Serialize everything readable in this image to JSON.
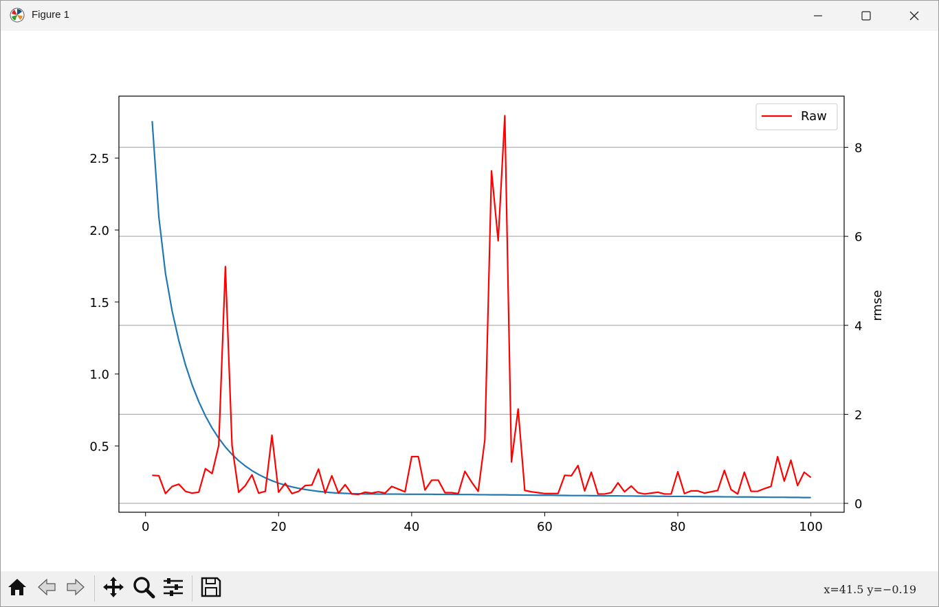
{
  "window": {
    "title": "Figure 1",
    "icons": {
      "app": "matplotlib-icon",
      "minimize": "minimize-icon",
      "maximize": "maximize-icon",
      "close": "close-icon"
    }
  },
  "toolbar": {
    "buttons": [
      {
        "icon": "home-icon"
      },
      {
        "icon": "back-arrow-icon"
      },
      {
        "icon": "forward-arrow-icon"
      },
      {
        "icon": "pan-move-icon"
      },
      {
        "icon": "zoom-magnifier-icon"
      },
      {
        "icon": "configure-subplots-icon"
      },
      {
        "icon": "save-floppy-icon"
      }
    ],
    "coords": "x=41.5 y=−0.19"
  },
  "chart_data": {
    "type": "line",
    "title": "",
    "xlabel": "",
    "ylabel_left": "",
    "ylabel_right": "rmse",
    "xlim": [
      -4,
      105
    ],
    "ylim_left": [
      0.04,
      2.93
    ],
    "ylim_right": [
      -0.2,
      9.15
    ],
    "xticks": [
      0,
      20,
      40,
      60,
      80,
      100
    ],
    "yticks_left": [
      0.5,
      1.0,
      1.5,
      2.0,
      2.5
    ],
    "yticks_right": [
      0,
      2,
      4,
      6,
      8
    ],
    "xtick_labels": [
      "0",
      "20",
      "40",
      "60",
      "80",
      "100"
    ],
    "ytick_labels_left": [
      "0.5",
      "1.0",
      "1.5",
      "2.0",
      "2.5"
    ],
    "ytick_labels_right": [
      "0",
      "2",
      "4",
      "6",
      "8"
    ],
    "grid": "horizontal, right axis",
    "legend": {
      "placement": "top-right",
      "entries": [
        "Raw"
      ]
    },
    "colors": {
      "smooth": "#1f77b4",
      "raw": "#ff0000"
    },
    "series": [
      {
        "axis": "left",
        "x_start": 1,
        "x_end": 100,
        "values": [
          2.757,
          2.091,
          1.698,
          1.437,
          1.232,
          1.064,
          0.925,
          0.808,
          0.709,
          0.625,
          0.554,
          0.493,
          0.442,
          0.398,
          0.361,
          0.329,
          0.302,
          0.279,
          0.259,
          0.242,
          0.228,
          0.216,
          0.206,
          0.198,
          0.191,
          0.185,
          0.18,
          0.176,
          0.173,
          0.171,
          0.169,
          0.168,
          0.167,
          0.167,
          0.166,
          0.166,
          0.166,
          0.166,
          0.165,
          0.165,
          0.165,
          0.165,
          0.165,
          0.164,
          0.164,
          0.164,
          0.163,
          0.163,
          0.163,
          0.162,
          0.162,
          0.161,
          0.161,
          0.161,
          0.16,
          0.16,
          0.159,
          0.159,
          0.158,
          0.158,
          0.158,
          0.157,
          0.157,
          0.156,
          0.156,
          0.156,
          0.155,
          0.155,
          0.154,
          0.154,
          0.154,
          0.153,
          0.153,
          0.152,
          0.152,
          0.152,
          0.151,
          0.151,
          0.15,
          0.15,
          0.15,
          0.149,
          0.149,
          0.148,
          0.148,
          0.148,
          0.147,
          0.147,
          0.146,
          0.146,
          0.146,
          0.145,
          0.145,
          0.144,
          0.144,
          0.144,
          0.143,
          0.143,
          0.142,
          0.142
        ]
      },
      {
        "name": "Raw",
        "axis": "right",
        "x_start": 1,
        "x_end": 100,
        "values": [
          0.63,
          0.62,
          0.22,
          0.38,
          0.43,
          0.27,
          0.23,
          0.25,
          0.78,
          0.67,
          1.3,
          5.32,
          1.3,
          0.25,
          0.4,
          0.64,
          0.23,
          0.27,
          1.53,
          0.25,
          0.45,
          0.22,
          0.27,
          0.4,
          0.41,
          0.77,
          0.23,
          0.62,
          0.23,
          0.42,
          0.21,
          0.2,
          0.25,
          0.23,
          0.26,
          0.23,
          0.38,
          0.32,
          0.26,
          1.05,
          1.05,
          0.3,
          0.52,
          0.52,
          0.24,
          0.24,
          0.22,
          0.72,
          0.48,
          0.27,
          1.43,
          7.47,
          5.9,
          8.71,
          0.93,
          2.12,
          0.29,
          0.26,
          0.24,
          0.22,
          0.22,
          0.22,
          0.63,
          0.62,
          0.85,
          0.28,
          0.7,
          0.21,
          0.21,
          0.24,
          0.46,
          0.26,
          0.39,
          0.24,
          0.21,
          0.23,
          0.25,
          0.21,
          0.21,
          0.71,
          0.22,
          0.28,
          0.28,
          0.23,
          0.26,
          0.29,
          0.74,
          0.31,
          0.21,
          0.7,
          0.27,
          0.27,
          0.33,
          0.38,
          1.05,
          0.5,
          0.97,
          0.4,
          0.7,
          0.58
        ]
      }
    ]
  }
}
